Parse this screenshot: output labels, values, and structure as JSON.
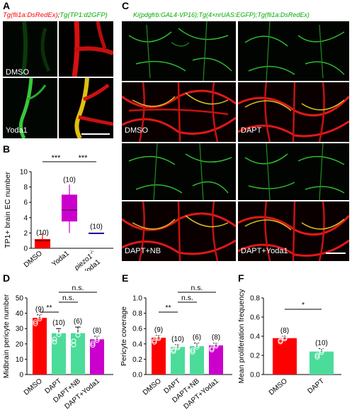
{
  "panels": {
    "A": "A",
    "B": "B",
    "C": "C",
    "D": "D",
    "E": "E",
    "F": "F"
  },
  "panelA": {
    "title_red": "Tg(fli1a:DsRedEx)",
    "title_sep": ";",
    "title_green": "Tg(TP1:d2GFP)",
    "row_labels": [
      "DMSO",
      "Yoda1"
    ]
  },
  "panelC": {
    "title": "Ki(pdgfrb:GAL4-VP16);Tg(4×nrUAS:EGFP);Tg(fli1a:DsRedEx)",
    "labels": [
      "DMSO",
      "DAPT",
      "DAPT+NB",
      "DAPT+Yoda1"
    ]
  },
  "colors": {
    "red": "#ff0000",
    "magenta": "#cc00cc",
    "blue": "#0000ff",
    "green": "#4bdc9a",
    "title_red": "#ff0000",
    "title_green": "#00aa00"
  },
  "panelB": {
    "chart_data": {
      "type": "box",
      "ylabel": "TP1+ brain EC number",
      "yticks": [
        0,
        2,
        4,
        6,
        8,
        10
      ],
      "ylim": [
        0,
        10
      ],
      "categories": [
        "DMSO",
        "Yoda1",
        "piezo1-/- +Yoda1"
      ],
      "category_labels": [
        "DMSO",
        "Yoda1",
        "piezo1",
        "+Yoda1"
      ],
      "piezo_sup": "-/-",
      "boxes": [
        {
          "min": 0,
          "q1": 0,
          "median": 1,
          "q3": 1.2,
          "max": 2
        },
        {
          "min": 2,
          "q1": 3.5,
          "median": 5,
          "q3": 7,
          "max": 8.3
        },
        {
          "min": 2,
          "q1": 2,
          "median": 2,
          "q3": 2,
          "max": 2
        }
      ],
      "n": [
        "(10)",
        "(10)",
        "(10)"
      ],
      "significance": [
        "***",
        "***"
      ]
    }
  },
  "panelD": {
    "chart_data": {
      "type": "bar",
      "ylabel": "Midbrain pericyte number",
      "yticks": [
        0,
        10,
        20,
        30,
        40,
        50
      ],
      "ylim": [
        0,
        50
      ],
      "categories": [
        "DMSO",
        "DAPT",
        "DAPT+NB",
        "DAPT+Yoda1"
      ],
      "values": [
        37,
        27,
        27,
        23
      ],
      "errors": [
        2,
        3,
        4,
        2
      ],
      "n": [
        "(9)",
        "(10)",
        "(6)",
        "(8)"
      ],
      "significance": [
        "**",
        "n.s.",
        "n.s."
      ]
    }
  },
  "panelE": {
    "chart_data": {
      "type": "bar",
      "ylabel": "Pericyte coverage",
      "yticks": [
        "0.0",
        "0.2",
        "0.4",
        "0.6",
        "0.8",
        "1.0"
      ],
      "ylim": [
        0,
        1.0
      ],
      "categories": [
        "DMSO",
        "DAPT",
        "DAPT+NB",
        "DAPT+Yoda1"
      ],
      "values": [
        0.48,
        0.36,
        0.37,
        0.38
      ],
      "errors": [
        0.03,
        0.03,
        0.04,
        0.03
      ],
      "n": [
        "(9)",
        "(10)",
        "(6)",
        "(8)"
      ],
      "significance": [
        "**",
        "n.s.",
        "n.s."
      ]
    }
  },
  "panelF": {
    "chart_data": {
      "type": "bar",
      "ylabel": "Mean proliferation frequency",
      "yticks": [
        "0.0",
        "0.2",
        "0.4",
        "0.6",
        "0.8"
      ],
      "ylim": [
        0,
        0.8
      ],
      "categories": [
        "DMSO",
        "DAPT"
      ],
      "values": [
        0.38,
        0.24
      ],
      "errors": [
        0.02,
        0.03
      ],
      "n": [
        "(8)",
        "(10)"
      ],
      "significance": [
        "*"
      ]
    }
  }
}
